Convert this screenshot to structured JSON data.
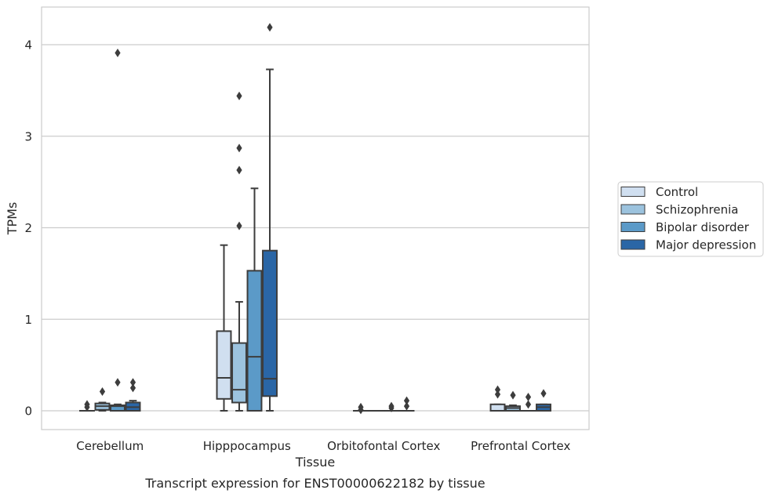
{
  "chart_data": {
    "type": "box",
    "title": "",
    "caption": "Transcript expression for ENST00000622182 by tissue",
    "xlabel": "Tissue",
    "ylabel": "TPMs",
    "ylim": [
      -0.2,
      4.4
    ],
    "yticks": [
      0,
      1,
      2,
      3,
      4
    ],
    "grid": "horizontal",
    "legend_placement": "right",
    "categories": [
      "Cerebellum",
      "Hipppocampus",
      "Orbitofontal Cortex",
      "Prefrontal Cortex"
    ],
    "series": [
      {
        "name": "Control",
        "color": "#d0dff0",
        "boxes": [
          {
            "min": 0,
            "q1": 0,
            "median": 0,
            "q3": 0,
            "max": 0,
            "outliers": [
              0.04,
              0.07
            ]
          },
          {
            "min": 0,
            "q1": 0.13,
            "median": 0.36,
            "q3": 0.87,
            "max": 1.81,
            "outliers": []
          },
          {
            "min": 0,
            "q1": 0,
            "median": 0,
            "q3": 0,
            "max": 0,
            "outliers": [
              0.01,
              0.04
            ]
          },
          {
            "min": 0,
            "q1": 0,
            "median": 0,
            "q3": 0.07,
            "max": 0.07,
            "outliers": [
              0.18,
              0.23
            ]
          }
        ]
      },
      {
        "name": "Schizophrenia",
        "color": "#9cc3de",
        "boxes": [
          {
            "min": 0,
            "q1": 0.01,
            "median": 0.05,
            "q3": 0.08,
            "max": 0.09,
            "outliers": [
              0.21
            ]
          },
          {
            "min": 0,
            "q1": 0.09,
            "median": 0.23,
            "q3": 0.74,
            "max": 1.19,
            "outliers": [
              2.02,
              2.63,
              2.87,
              3.44
            ]
          },
          {
            "min": 0,
            "q1": 0,
            "median": 0,
            "q3": 0,
            "max": 0,
            "outliers": []
          },
          {
            "min": 0,
            "q1": 0,
            "median": 0.03,
            "q3": 0.05,
            "max": 0.06,
            "outliers": [
              0.17
            ]
          }
        ]
      },
      {
        "name": "Bipolar disorder",
        "color": "#5b9ac8",
        "boxes": [
          {
            "min": 0,
            "q1": 0,
            "median": 0.05,
            "q3": 0.06,
            "max": 0.07,
            "outliers": [
              0.31,
              3.91
            ]
          },
          {
            "min": 0,
            "q1": 0,
            "median": 0.59,
            "q3": 1.53,
            "max": 2.43,
            "outliers": []
          },
          {
            "min": 0,
            "q1": 0,
            "median": 0,
            "q3": 0,
            "max": 0,
            "outliers": [
              0.03,
              0.05
            ]
          },
          {
            "min": 0,
            "q1": 0,
            "median": 0,
            "q3": 0,
            "max": 0,
            "outliers": [
              0.07,
              0.15
            ]
          }
        ]
      },
      {
        "name": "Major depression",
        "color": "#2a66a6",
        "boxes": [
          {
            "min": 0,
            "q1": 0,
            "median": 0.04,
            "q3": 0.09,
            "max": 0.11,
            "outliers": [
              0.25,
              0.31
            ]
          },
          {
            "min": 0,
            "q1": 0.16,
            "median": 0.35,
            "q3": 1.75,
            "max": 3.73,
            "outliers": [
              4.19
            ]
          },
          {
            "min": 0,
            "q1": 0,
            "median": 0,
            "q3": 0,
            "max": 0,
            "outliers": [
              0.05,
              0.11
            ]
          },
          {
            "min": 0,
            "q1": 0,
            "median": 0.04,
            "q3": 0.07,
            "max": 0.07,
            "outliers": [
              0.19
            ]
          }
        ]
      }
    ]
  }
}
